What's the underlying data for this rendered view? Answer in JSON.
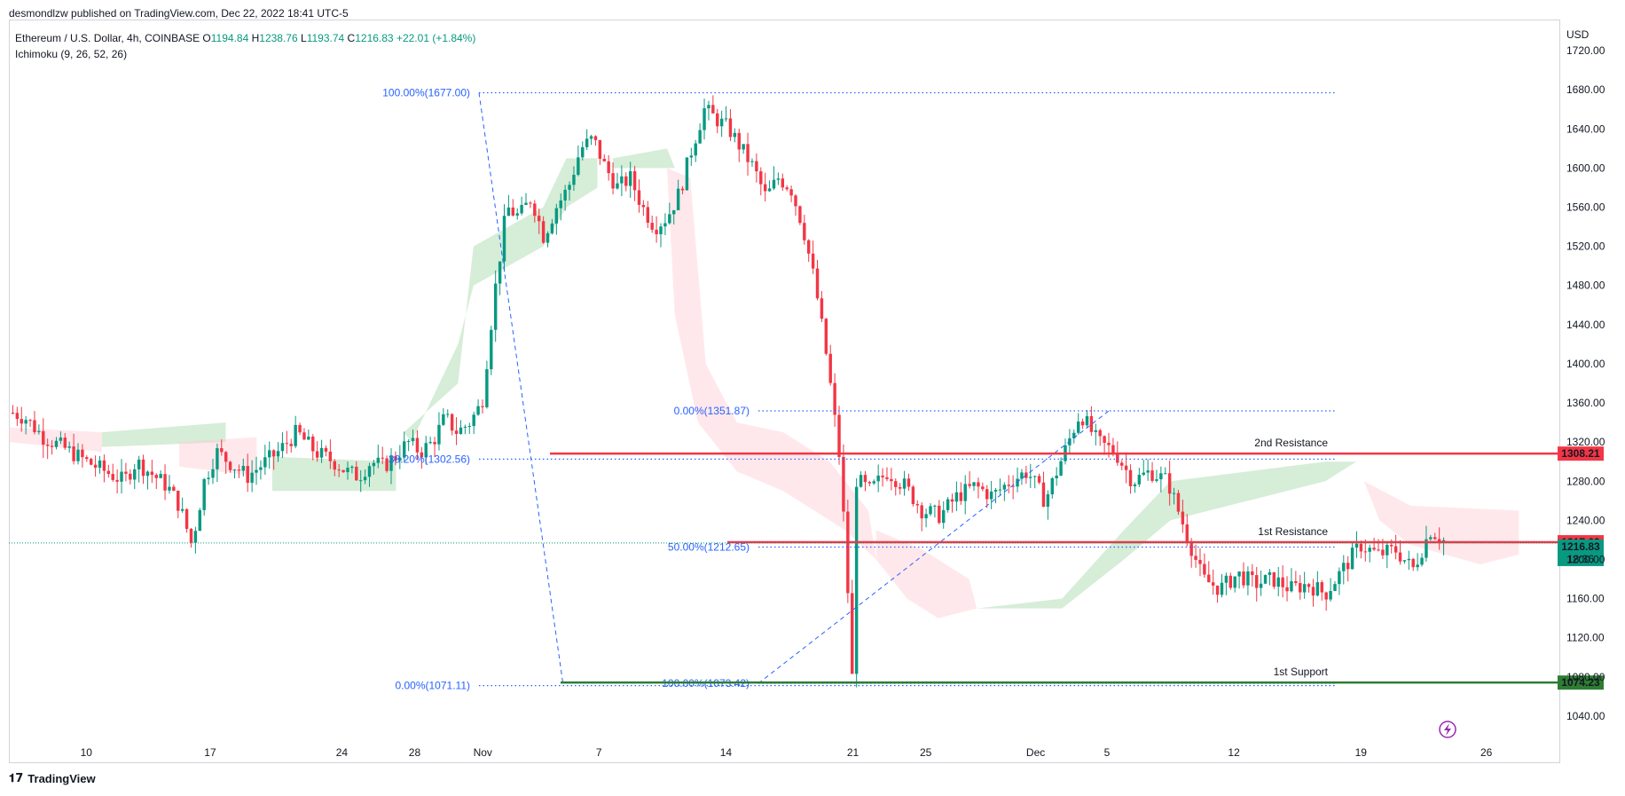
{
  "header": {
    "publisher": "desmondlzw published on TradingView.com, Dec 22, 2022 18:41 UTC-5"
  },
  "legend": {
    "symbol": "Ethereum / U.S. Dollar, 4h, COINBASE",
    "open_label": "O",
    "open": "1194.84",
    "high_label": "H",
    "high": "1238.76",
    "low_label": "L",
    "low": "1193.74",
    "close_label": "C",
    "close": "1216.83",
    "change": "+22.01 (+1.84%)",
    "indicator": "Ichimoku (9, 26, 52, 26)"
  },
  "branding": {
    "name": "TradingView"
  },
  "colors": {
    "up": "#089981",
    "down": "#f23645",
    "resistance": "#f23645",
    "support": "#2e7d32",
    "fib": "#2962ff",
    "cloud_bull": "#a5d6a7",
    "cloud_bear": "#ffcdd2"
  },
  "chart_data": {
    "type": "candlestick",
    "currency": "USD",
    "ylim": [
      1010,
      1750
    ],
    "y_ticks": [
      1040,
      1080,
      1120,
      1160,
      1200,
      1240,
      1280,
      1320,
      1360,
      1400,
      1440,
      1480,
      1520,
      1560,
      1600,
      1640,
      1680,
      1720
    ],
    "y_tick_labels": [
      "1040.00",
      "1080.00",
      "1120.00",
      "1160.00",
      "1200.00",
      "1240.00",
      "1280.00",
      "1320.00",
      "1360.00",
      "1400.00",
      "1440.00",
      "1480.00",
      "1520.00",
      "1560.00",
      "1600.00",
      "1640.00",
      "1680.00",
      "1720.00"
    ],
    "x_ticks": [
      {
        "label": "10",
        "pos": 0.05
      },
      {
        "label": "17",
        "pos": 0.13
      },
      {
        "label": "24",
        "pos": 0.215
      },
      {
        "label": "28",
        "pos": 0.262
      },
      {
        "label": "Nov",
        "pos": 0.306
      },
      {
        "label": "7",
        "pos": 0.381
      },
      {
        "label": "14",
        "pos": 0.463
      },
      {
        "label": "21",
        "pos": 0.545
      },
      {
        "label": "25",
        "pos": 0.592
      },
      {
        "label": "Dec",
        "pos": 0.663
      },
      {
        "label": "5",
        "pos": 0.709
      },
      {
        "label": "12",
        "pos": 0.791
      },
      {
        "label": "19",
        "pos": 0.873
      },
      {
        "label": "26",
        "pos": 0.954
      }
    ],
    "price_path": [
      [
        0.0,
        1350
      ],
      [
        0.01,
        1345
      ],
      [
        0.025,
        1325
      ],
      [
        0.04,
        1315
      ],
      [
        0.06,
        1300
      ],
      [
        0.075,
        1290
      ],
      [
        0.09,
        1280
      ],
      [
        0.1,
        1300
      ],
      [
        0.11,
        1290
      ],
      [
        0.125,
        1275
      ],
      [
        0.135,
        1255
      ],
      [
        0.145,
        1215
      ],
      [
        0.155,
        1280
      ],
      [
        0.165,
        1310
      ],
      [
        0.175,
        1300
      ],
      [
        0.19,
        1285
      ],
      [
        0.205,
        1300
      ],
      [
        0.215,
        1310
      ],
      [
        0.23,
        1330
      ],
      [
        0.245,
        1310
      ],
      [
        0.26,
        1300
      ],
      [
        0.27,
        1290
      ],
      [
        0.28,
        1285
      ],
      [
        0.29,
        1300
      ],
      [
        0.3,
        1295
      ],
      [
        0.31,
        1305
      ],
      [
        0.32,
        1320
      ],
      [
        0.33,
        1310
      ],
      [
        0.34,
        1320
      ],
      [
        0.35,
        1345
      ],
      [
        0.36,
        1330
      ],
      [
        0.37,
        1340
      ],
      [
        0.38,
        1360
      ],
      [
        0.39,
        1470
      ],
      [
        0.4,
        1560
      ],
      [
        0.41,
        1550
      ],
      [
        0.42,
        1570
      ],
      [
        0.43,
        1530
      ],
      [
        0.44,
        1560
      ],
      [
        0.45,
        1580
      ],
      [
        0.46,
        1620
      ],
      [
        0.47,
        1630
      ],
      [
        0.48,
        1600
      ],
      [
        0.49,
        1580
      ],
      [
        0.5,
        1590
      ],
      [
        0.51,
        1560
      ],
      [
        0.52,
        1540
      ],
      [
        0.53,
        1550
      ],
      [
        0.54,
        1575
      ],
      [
        0.55,
        1620
      ],
      [
        0.56,
        1660
      ],
      [
        0.57,
        1650
      ],
      [
        0.58,
        1640
      ],
      [
        0.59,
        1620
      ],
      [
        0.6,
        1600
      ],
      [
        0.61,
        1570
      ],
      [
        0.62,
        1590
      ],
      [
        0.63,
        1580
      ],
      [
        0.64,
        1540
      ],
      [
        0.65,
        1480
      ],
      [
        0.66,
        1400
      ],
      [
        0.67,
        1300
      ],
      [
        0.675,
        1200
      ],
      [
        0.68,
        1075
      ],
      [
        0.685,
        1200
      ],
      [
        0.69,
        1320
      ],
      [
        0.695,
        1260
      ],
      [
        0.7,
        1280
      ],
      [
        0.705,
        1260
      ],
      [
        0.71,
        1250
      ],
      [
        0.72,
        1270
      ],
      [
        0.73,
        1240
      ],
      [
        0.74,
        1230
      ],
      [
        0.75,
        1260
      ],
      [
        0.76,
        1230
      ],
      [
        0.77,
        1220
      ],
      [
        0.78,
        1245
      ],
      [
        0.79,
        1220
      ],
      [
        0.8,
        1200
      ],
      [
        0.81,
        1215
      ],
      [
        0.82,
        1210
      ],
      [
        0.83,
        1205
      ],
      [
        0.84,
        1212
      ],
      [
        0.845,
        1180
      ],
      [
        0.85,
        1120
      ],
      [
        0.855,
        1100
      ],
      [
        0.86,
        1080
      ],
      [
        0.865,
        1110
      ],
      [
        0.87,
        1150
      ],
      [
        0.875,
        1170
      ],
      [
        0.885,
        1190
      ],
      [
        0.895,
        1180
      ],
      [
        0.905,
        1200
      ],
      [
        0.915,
        1215
      ],
      [
        0.925,
        1210
      ],
      [
        0.935,
        1200
      ],
      [
        0.94,
        1180
      ],
      [
        0.945,
        1170
      ],
      [
        0.955,
        1190
      ],
      [
        0.965,
        1210
      ],
      [
        0.975,
        1230
      ],
      [
        0.985,
        1275
      ],
      [
        0.995,
        1290
      ],
      [
        1.0,
        1285
      ]
    ],
    "price_path_b": [
      [
        0.0,
        1285
      ],
      [
        0.02,
        1270
      ],
      [
        0.04,
        1290
      ],
      [
        0.06,
        1275
      ],
      [
        0.08,
        1250
      ],
      [
        0.1,
        1245
      ],
      [
        0.12,
        1265
      ],
      [
        0.14,
        1275
      ],
      [
        0.16,
        1265
      ],
      [
        0.18,
        1280
      ],
      [
        0.2,
        1290
      ],
      [
        0.22,
        1260
      ],
      [
        0.24,
        1305
      ],
      [
        0.26,
        1350
      ],
      [
        0.28,
        1320
      ],
      [
        0.3,
        1310
      ],
      [
        0.32,
        1280
      ],
      [
        0.34,
        1290
      ],
      [
        0.36,
        1280
      ],
      [
        0.38,
        1230
      ],
      [
        0.4,
        1180
      ],
      [
        0.42,
        1170
      ],
      [
        0.44,
        1185
      ],
      [
        0.46,
        1175
      ],
      [
        0.48,
        1180
      ],
      [
        0.5,
        1170
      ],
      [
        0.52,
        1175
      ],
      [
        0.54,
        1165
      ],
      [
        0.56,
        1190
      ],
      [
        0.58,
        1215
      ],
      [
        0.6,
        1205
      ],
      [
        0.62,
        1210
      ],
      [
        0.64,
        1190
      ],
      [
        0.66,
        1230
      ],
      [
        0.68,
        1216
      ]
    ],
    "ichimoku_note": "Ichimoku cloud shown as green (bullish) and red (bearish) shaded areas",
    "horizontal_levels": [
      {
        "name": "2nd Resistance",
        "price": 1308.21,
        "label": "1308.21"
      },
      {
        "name": "1st Resistance",
        "price": 1217.63,
        "label": "1217.63"
      },
      {
        "name": "1st Support",
        "price": 1074.23,
        "label": "1074.23"
      }
    ],
    "fib_labels": [
      {
        "text": "100.00%(1677.00)",
        "price": 1677.0
      },
      {
        "text": "38.20%(1302.56)",
        "price": 1302.56
      },
      {
        "text": "0.00%(1071.11)",
        "price": 1071.11
      },
      {
        "text": "0.00%(1351.87)",
        "price": 1351.87
      },
      {
        "text": "50.00%(1212.65)",
        "price": 1212.65
      },
      {
        "text": "100.00%(1073.42)",
        "price": 1073.42
      }
    ],
    "last_price": {
      "label": "1216.83",
      "countdown": "18:36",
      "price": 1216.83
    }
  }
}
